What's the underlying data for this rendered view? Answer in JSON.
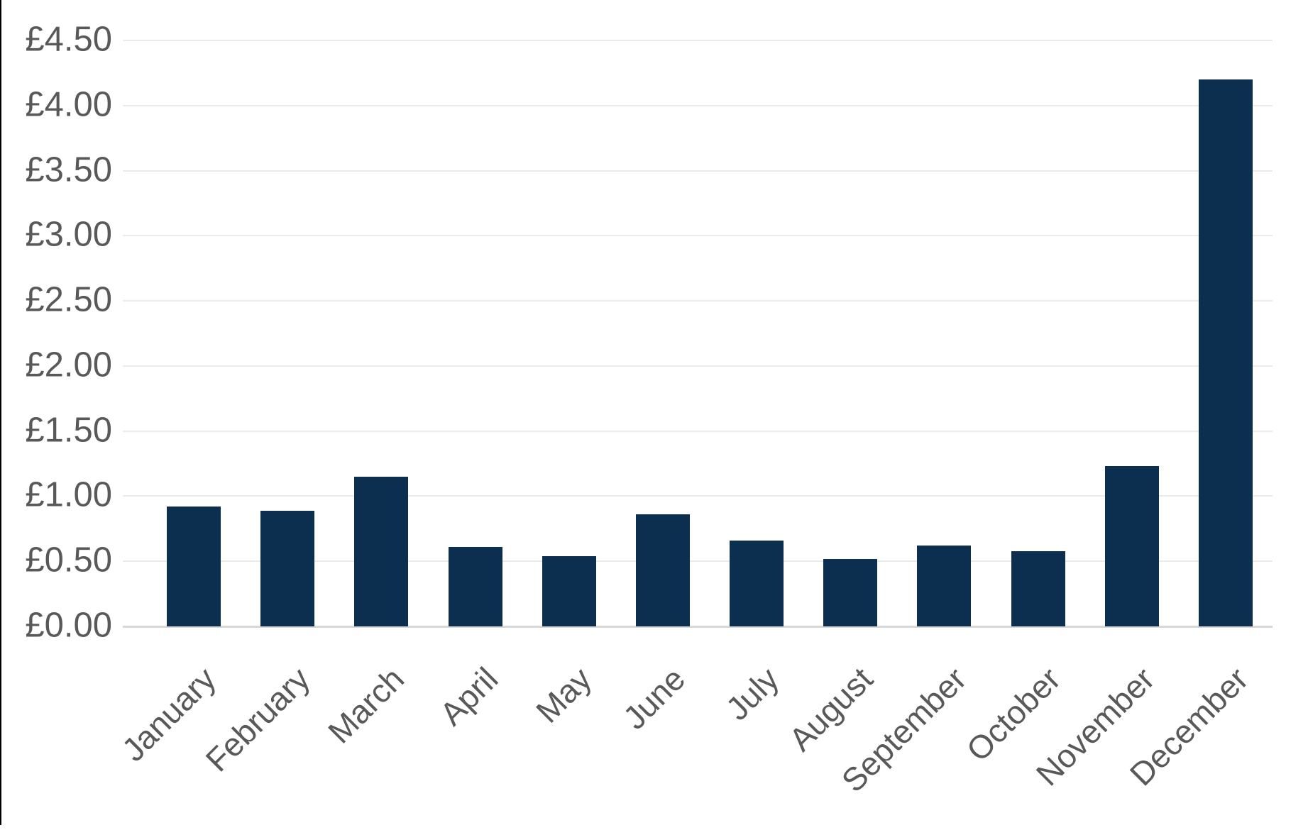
{
  "chart_data": {
    "type": "bar",
    "title": "",
    "currency": "£",
    "categories": [
      "January",
      "February",
      "March",
      "April",
      "May",
      "June",
      "July",
      "August",
      "September",
      "October",
      "November",
      "December"
    ],
    "values": [
      0.92,
      0.89,
      1.15,
      0.61,
      0.54,
      0.86,
      0.66,
      0.52,
      0.62,
      0.58,
      1.23,
      4.2
    ],
    "y_ticks": [
      "£0.00",
      "£0.50",
      "£1.00",
      "£1.50",
      "£2.00",
      "£2.50",
      "£3.00",
      "£3.50",
      "£4.00",
      "£4.50"
    ],
    "y_tick_values": [
      0,
      0.5,
      1.0,
      1.5,
      2.0,
      2.5,
      3.0,
      3.5,
      4.0,
      4.5
    ],
    "ylim": [
      0,
      4.5
    ],
    "xlabel": "",
    "ylabel": "",
    "grid": true,
    "legend": "none",
    "bar_color": "#0c2f50",
    "gridline_color": "#ebebeb",
    "axis_line_color": "#d8d8d8",
    "axis_text_color": "#595959"
  }
}
